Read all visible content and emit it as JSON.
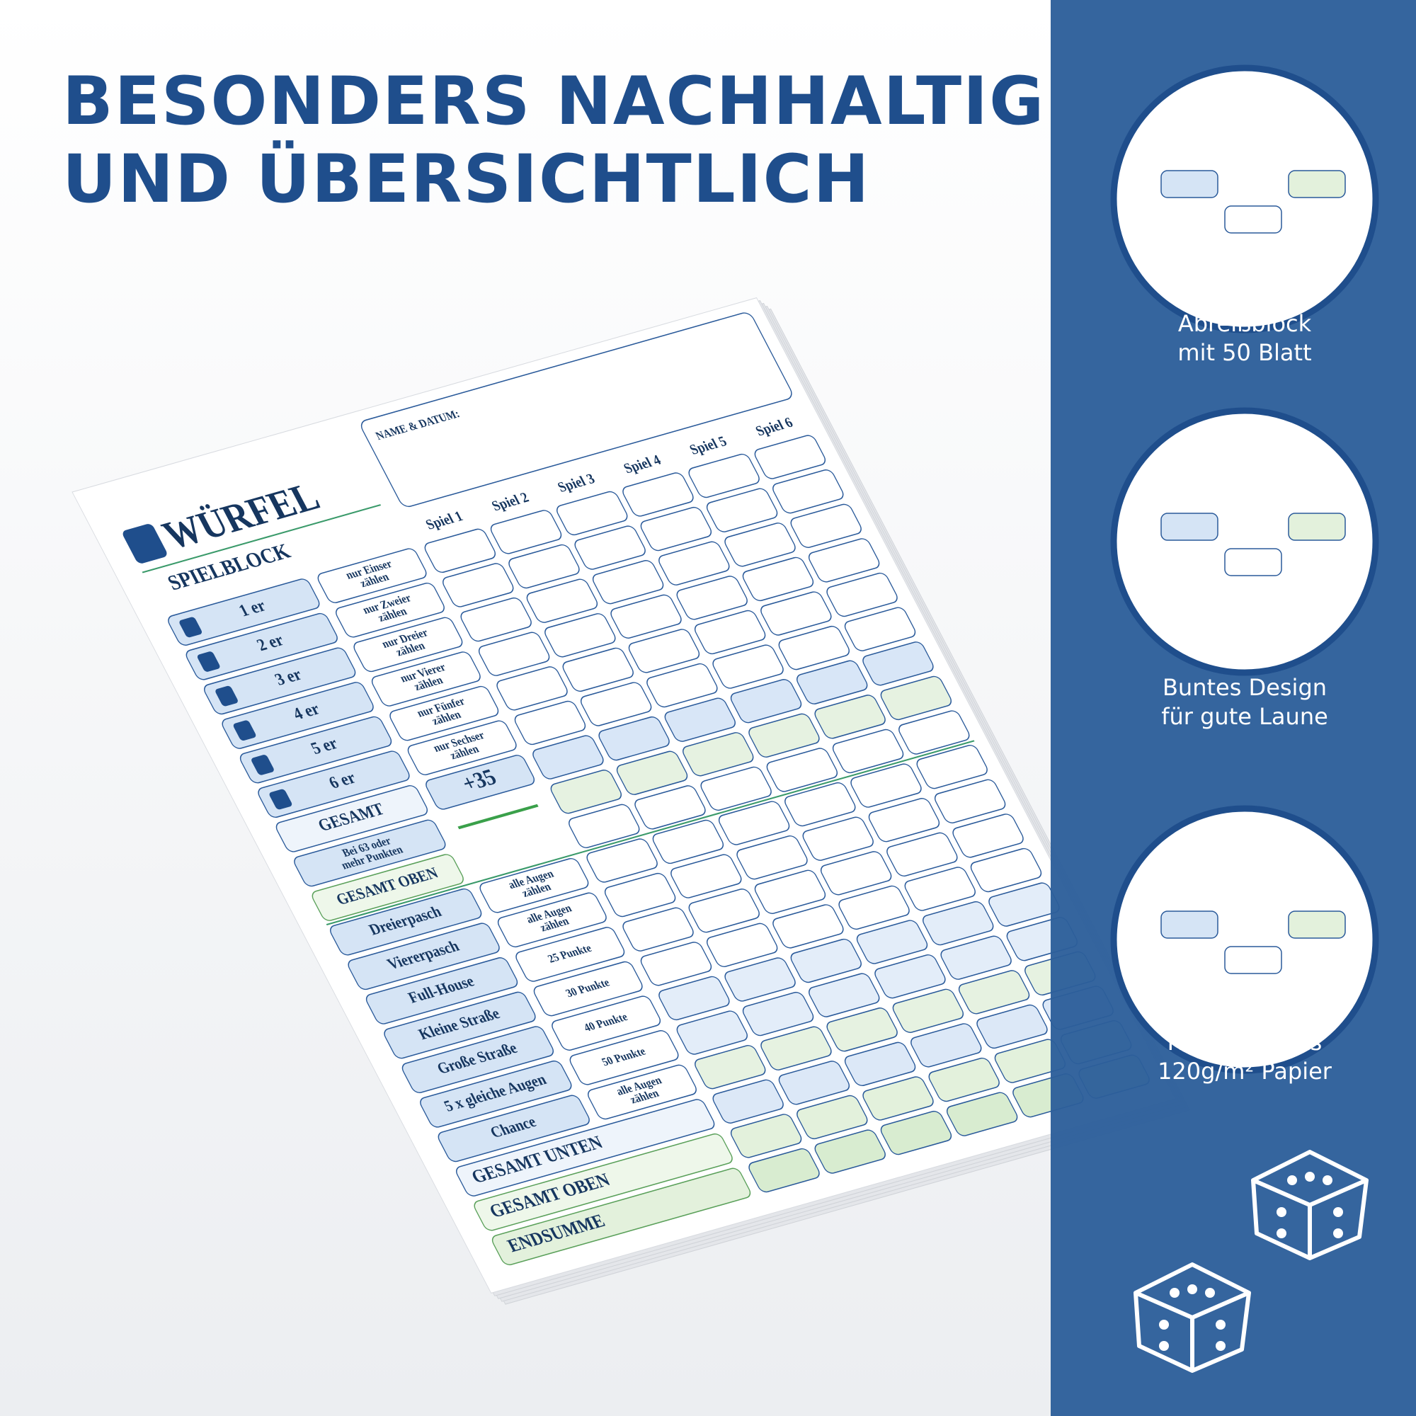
{
  "header": {
    "title_lines": [
      "BESONDERS NACHHALTIG",
      "UND ÜBERSICHTLICH"
    ]
  },
  "sheet": {
    "title": "WÜRFEL",
    "subtitle": "SPIELBLOCK",
    "name_label": "NAME & DATUM:",
    "games": [
      "Spiel 1",
      "Spiel 2",
      "Spiel 3",
      "Spiel 4",
      "Spiel 5",
      "Spiel 6"
    ],
    "upper_rows": [
      {
        "label": "1 er",
        "note": [
          "nur Einser",
          "zählen"
        ]
      },
      {
        "label": "2 er",
        "note": [
          "nur Zweier",
          "zählen"
        ]
      },
      {
        "label": "3 er",
        "note": [
          "nur Dreier",
          "zählen"
        ]
      },
      {
        "label": "4 er",
        "note": [
          "nur Vierer",
          "zählen"
        ]
      },
      {
        "label": "5 er",
        "note": [
          "nur Fünfer",
          "zählen"
        ]
      },
      {
        "label": "6 er",
        "note": [
          "nur Sechser",
          "zählen"
        ]
      }
    ],
    "gesamt": "GESAMT",
    "bonus": "+35",
    "bonus_note": [
      "Bei 63 oder",
      "mehr Punkten"
    ],
    "gesamt_oben": "GESAMT OBEN",
    "lower_rows": [
      {
        "label": "Dreierpasch",
        "note": [
          "alle Augen",
          "zählen"
        ]
      },
      {
        "label": "Viererpasch",
        "note": [
          "alle Augen",
          "zählen"
        ]
      },
      {
        "label": "Full-House",
        "note": [
          "25 Punkte"
        ]
      },
      {
        "label": "Kleine Straße",
        "note": [
          "30 Punkte"
        ]
      },
      {
        "label": "Große Straße",
        "note": [
          "40 Punkte"
        ]
      },
      {
        "label": "5 x gleiche Augen",
        "note": [
          "50 Punkte"
        ]
      },
      {
        "label": "Chance",
        "note": [
          "alle Augen",
          "zählen"
        ]
      }
    ],
    "totals": [
      "GESAMT UNTEN",
      "GESAMT OBEN",
      "ENDSUMME"
    ]
  },
  "features": [
    {
      "lines": [
        "Abreißblock",
        "mit 50 Blatt"
      ]
    },
    {
      "lines": [
        "Buntes Design",
        "für gute Laune"
      ]
    },
    {
      "lines": [
        "Hochwertiges",
        "120g/m² Papier"
      ]
    }
  ]
}
